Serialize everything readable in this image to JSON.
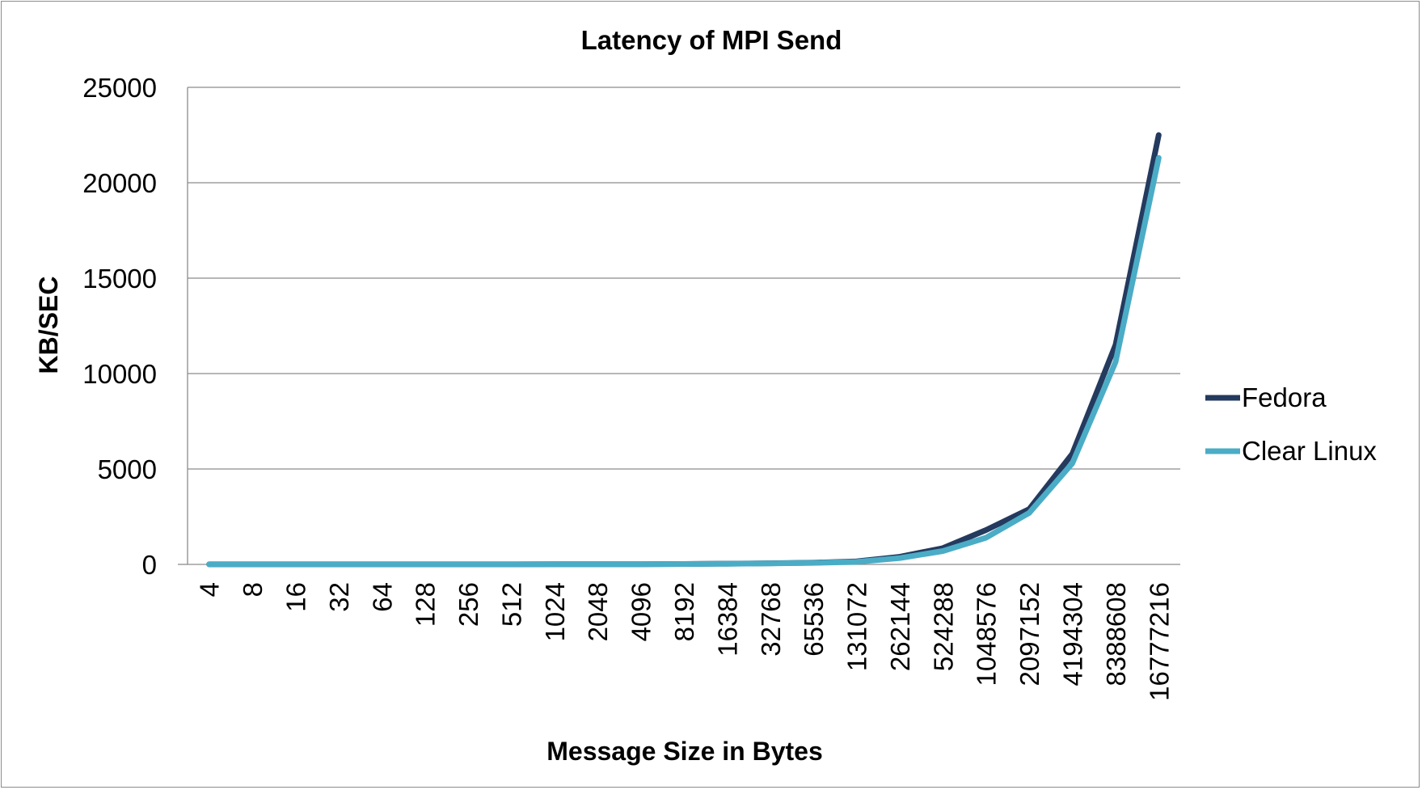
{
  "chart_data": {
    "type": "line",
    "title": "Latency of MPI Send",
    "xlabel": "Message Size in Bytes",
    "ylabel": "KB/SEC",
    "categories": [
      "4",
      "8",
      "16",
      "32",
      "64",
      "128",
      "256",
      "512",
      "1024",
      "2048",
      "4096",
      "8192",
      "16384",
      "32768",
      "65536",
      "131072",
      "262144",
      "524288",
      "1048576",
      "2097152",
      "4194304",
      "8388608",
      "16777216"
    ],
    "yticks": [
      "0",
      "5000",
      "10000",
      "15000",
      "20000",
      "25000"
    ],
    "ylim": [
      0,
      25000
    ],
    "grid": true,
    "legend_position": "right",
    "series": [
      {
        "name": "Fedora",
        "color": "#243a5e",
        "values": [
          3,
          3,
          3,
          3,
          3,
          4,
          5,
          6,
          8,
          10,
          14,
          22,
          38,
          60,
          90,
          160,
          400,
          850,
          1800,
          2900,
          5800,
          11500,
          22500
        ]
      },
      {
        "name": "Clear Linux",
        "color": "#4bacc6",
        "values": [
          3,
          3,
          3,
          3,
          3,
          4,
          5,
          6,
          8,
          10,
          14,
          20,
          34,
          55,
          80,
          130,
          330,
          700,
          1400,
          2700,
          5300,
          10600,
          21300
        ]
      }
    ]
  }
}
